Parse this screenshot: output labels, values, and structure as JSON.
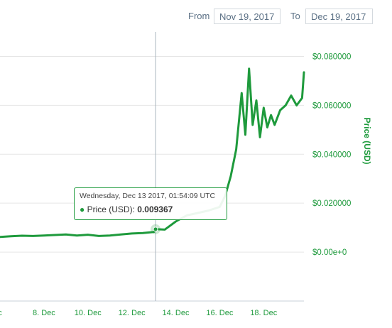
{
  "range": {
    "from_label": "From",
    "from_value": "Nov 19, 2017",
    "to_label": "To",
    "to_value": "Dec 19, 2017"
  },
  "tooltip": {
    "timestamp": "Wednesday, Dec 13 2017, 01:54:09 UTC",
    "series_label": "Price (USD):",
    "value": "0.009367"
  },
  "colors": {
    "line": "#1e9a3c",
    "axis_text_y": "#1e9a3c",
    "axis_text_x": "#1e9a3c",
    "grid": "#e6e6e6"
  },
  "chart_data": {
    "type": "line",
    "ylabel": "Price (USD)",
    "y_ticks": [
      "$0.00e+0",
      "$0.020000",
      "$0.040000",
      "$0.060000",
      "$0.080000"
    ],
    "y_tick_values": [
      0,
      0.02,
      0.04,
      0.06,
      0.08
    ],
    "x_ticks": [
      "c",
      "8. Dec",
      "10. Dec",
      "12. Dec",
      "14. Dec",
      "16. Dec",
      "18. Dec"
    ],
    "x_tick_values": [
      "2017-12-06",
      "2017-12-08",
      "2017-12-10",
      "2017-12-12",
      "2017-12-14",
      "2017-12-16",
      "2017-12-18"
    ],
    "xlim": [
      "2017-12-06T00:00",
      "2017-12-19T20:00"
    ],
    "ylim": [
      -0.02,
      0.09
    ],
    "grid": true,
    "series": [
      {
        "name": "Price (USD)",
        "x": [
          "2017-12-06T00:00",
          "2017-12-06T12:00",
          "2017-12-07T00:00",
          "2017-12-07T12:00",
          "2017-12-08T00:00",
          "2017-12-08T12:00",
          "2017-12-09T00:00",
          "2017-12-09T12:00",
          "2017-12-10T00:00",
          "2017-12-10T12:00",
          "2017-12-11T00:00",
          "2017-12-11T12:00",
          "2017-12-12T00:00",
          "2017-12-12T12:00",
          "2017-12-13T00:00",
          "2017-12-13T02:00",
          "2017-12-13T12:00",
          "2017-12-14T00:00",
          "2017-12-14T12:00",
          "2017-12-15T00:00",
          "2017-12-15T12:00",
          "2017-12-16T00:00",
          "2017-12-16T06:00",
          "2017-12-16T12:00",
          "2017-12-16T18:00",
          "2017-12-17T00:00",
          "2017-12-17T04:00",
          "2017-12-17T08:00",
          "2017-12-17T12:00",
          "2017-12-17T16:00",
          "2017-12-17T20:00",
          "2017-12-18T00:00",
          "2017-12-18T04:00",
          "2017-12-18T08:00",
          "2017-12-18T12:00",
          "2017-12-18T18:00",
          "2017-12-19T00:00",
          "2017-12-19T06:00",
          "2017-12-19T12:00",
          "2017-12-19T18:00",
          "2017-12-19T20:00"
        ],
        "y": [
          0.0062,
          0.0065,
          0.0067,
          0.0066,
          0.0068,
          0.007,
          0.0072,
          0.0068,
          0.0071,
          0.0066,
          0.0068,
          0.0072,
          0.0076,
          0.0078,
          0.0082,
          0.0094,
          0.0092,
          0.0125,
          0.015,
          0.016,
          0.017,
          0.0185,
          0.023,
          0.031,
          0.042,
          0.065,
          0.048,
          0.075,
          0.052,
          0.062,
          0.047,
          0.059,
          0.051,
          0.056,
          0.052,
          0.058,
          0.06,
          0.064,
          0.06,
          0.063,
          0.0735
        ]
      }
    ],
    "highlight": {
      "x": "2017-12-13T01:54",
      "y": 0.009367
    }
  }
}
